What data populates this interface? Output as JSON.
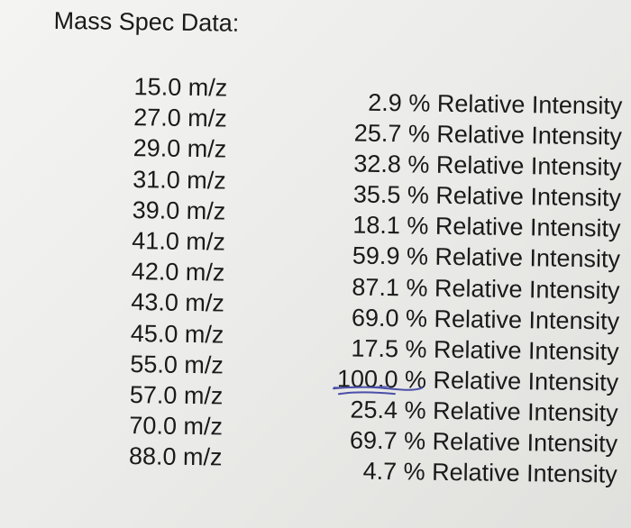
{
  "title": "Mass Spec Data:",
  "mz_unit": "m/z",
  "intensity_unit": "% Relative Intensity",
  "peaks": [
    {
      "mz": "15.0",
      "intensity": "2.9"
    },
    {
      "mz": "27.0",
      "intensity": "25.7"
    },
    {
      "mz": "29.0",
      "intensity": "32.8"
    },
    {
      "mz": "31.0",
      "intensity": "35.5"
    },
    {
      "mz": "39.0",
      "intensity": "18.1"
    },
    {
      "mz": "41.0",
      "intensity": "59.9"
    },
    {
      "mz": "42.0",
      "intensity": "87.1"
    },
    {
      "mz": "43.0",
      "intensity": "69.0"
    },
    {
      "mz": "45.0",
      "intensity": "17.5"
    },
    {
      "mz": "55.0",
      "intensity": "100.0"
    },
    {
      "mz": "57.0",
      "intensity": "25.4"
    },
    {
      "mz": "70.0",
      "intensity": "69.7"
    },
    {
      "mz": "88.0",
      "intensity": "4.7"
    }
  ],
  "colors": {
    "ink": "#1a1a1a",
    "pen_mark": "#4a4fa8"
  },
  "annotation": {
    "type": "hand-drawn underline",
    "marked_row_index": 9
  }
}
